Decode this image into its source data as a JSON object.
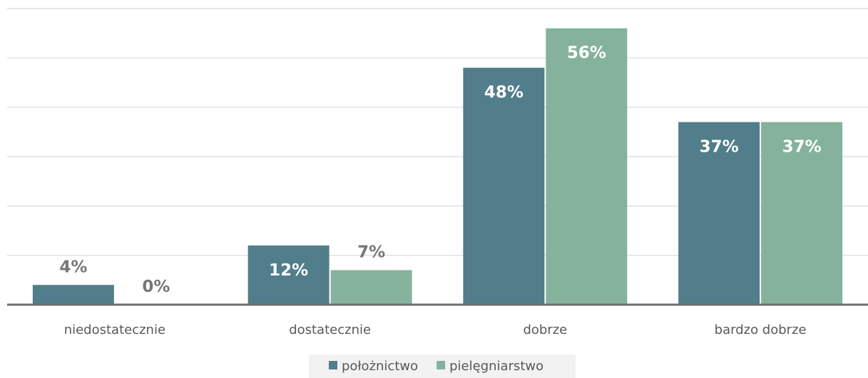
{
  "chart_data": {
    "type": "bar",
    "categories": [
      "niedostatecznie",
      "dostatecznie",
      "dobrze",
      "bardzo dobrze"
    ],
    "series": [
      {
        "name": "położnictwo",
        "values": [
          4,
          12,
          48,
          37
        ],
        "color": "#527d8b"
      },
      {
        "name": "pielęgniarstwo",
        "values": [
          0,
          7,
          56,
          37
        ],
        "color": "#85b29c"
      }
    ],
    "value_labels": [
      [
        "4%",
        "12%",
        "48%",
        "37%"
      ],
      [
        "0%",
        "7%",
        "56%",
        "37%"
      ]
    ],
    "ylim": [
      0,
      60
    ],
    "ytick_step": 10,
    "grid": true,
    "legend_position": "bottom",
    "label_color_inside": "#ffffff",
    "label_color_outside": "#767676",
    "axis_color": "#6e6e6e"
  }
}
